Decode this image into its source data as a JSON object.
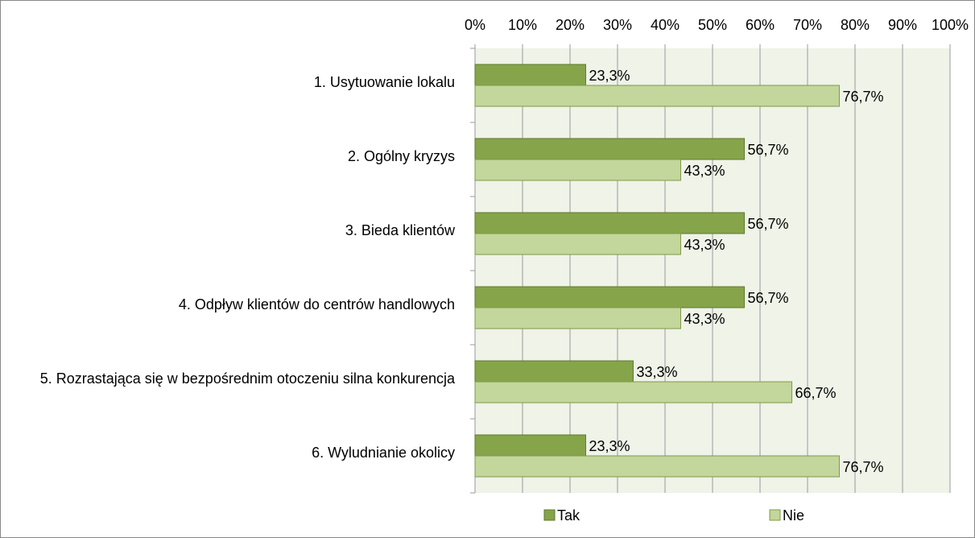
{
  "chart_data": {
    "type": "bar",
    "orientation": "horizontal",
    "categories": [
      "1. Usytuowanie lokalu",
      "2. Ogólny kryzys",
      "3. Bieda klientów",
      "4. Odpływ klientów do centrów handlowych",
      "5. Rozrastająca się w bezpośrednim otoczeniu silna konkurencja",
      "6. Wyludnianie okolicy"
    ],
    "series": [
      {
        "name": "Tak",
        "color": "#86a44a",
        "values": [
          23.3,
          56.7,
          56.7,
          56.7,
          33.3,
          23.3
        ],
        "value_labels": [
          "23,3%",
          "56,7%",
          "56,7%",
          "56,7%",
          "33,3%",
          "23,3%"
        ]
      },
      {
        "name": "Nie",
        "color": "#c3d69b",
        "values": [
          76.7,
          43.3,
          43.3,
          43.3,
          66.7,
          76.7
        ],
        "value_labels": [
          "76,7%",
          "43,3%",
          "43,3%",
          "43,3%",
          "66,7%",
          "76,7%"
        ]
      }
    ],
    "xlim": [
      0,
      100
    ],
    "xticks": [
      {
        "value": 0,
        "label": "0%"
      },
      {
        "value": 10,
        "label": "10%"
      },
      {
        "value": 20,
        "label": "20%"
      },
      {
        "value": 30,
        "label": "30%"
      },
      {
        "value": 40,
        "label": "40%"
      },
      {
        "value": 50,
        "label": "50%"
      },
      {
        "value": 60,
        "label": "60%"
      },
      {
        "value": 70,
        "label": "70%"
      },
      {
        "value": 80,
        "label": "80%"
      },
      {
        "value": 90,
        "label": "90%"
      },
      {
        "value": 100,
        "label": "100%"
      }
    ],
    "grid": true,
    "legend": "bottom"
  }
}
